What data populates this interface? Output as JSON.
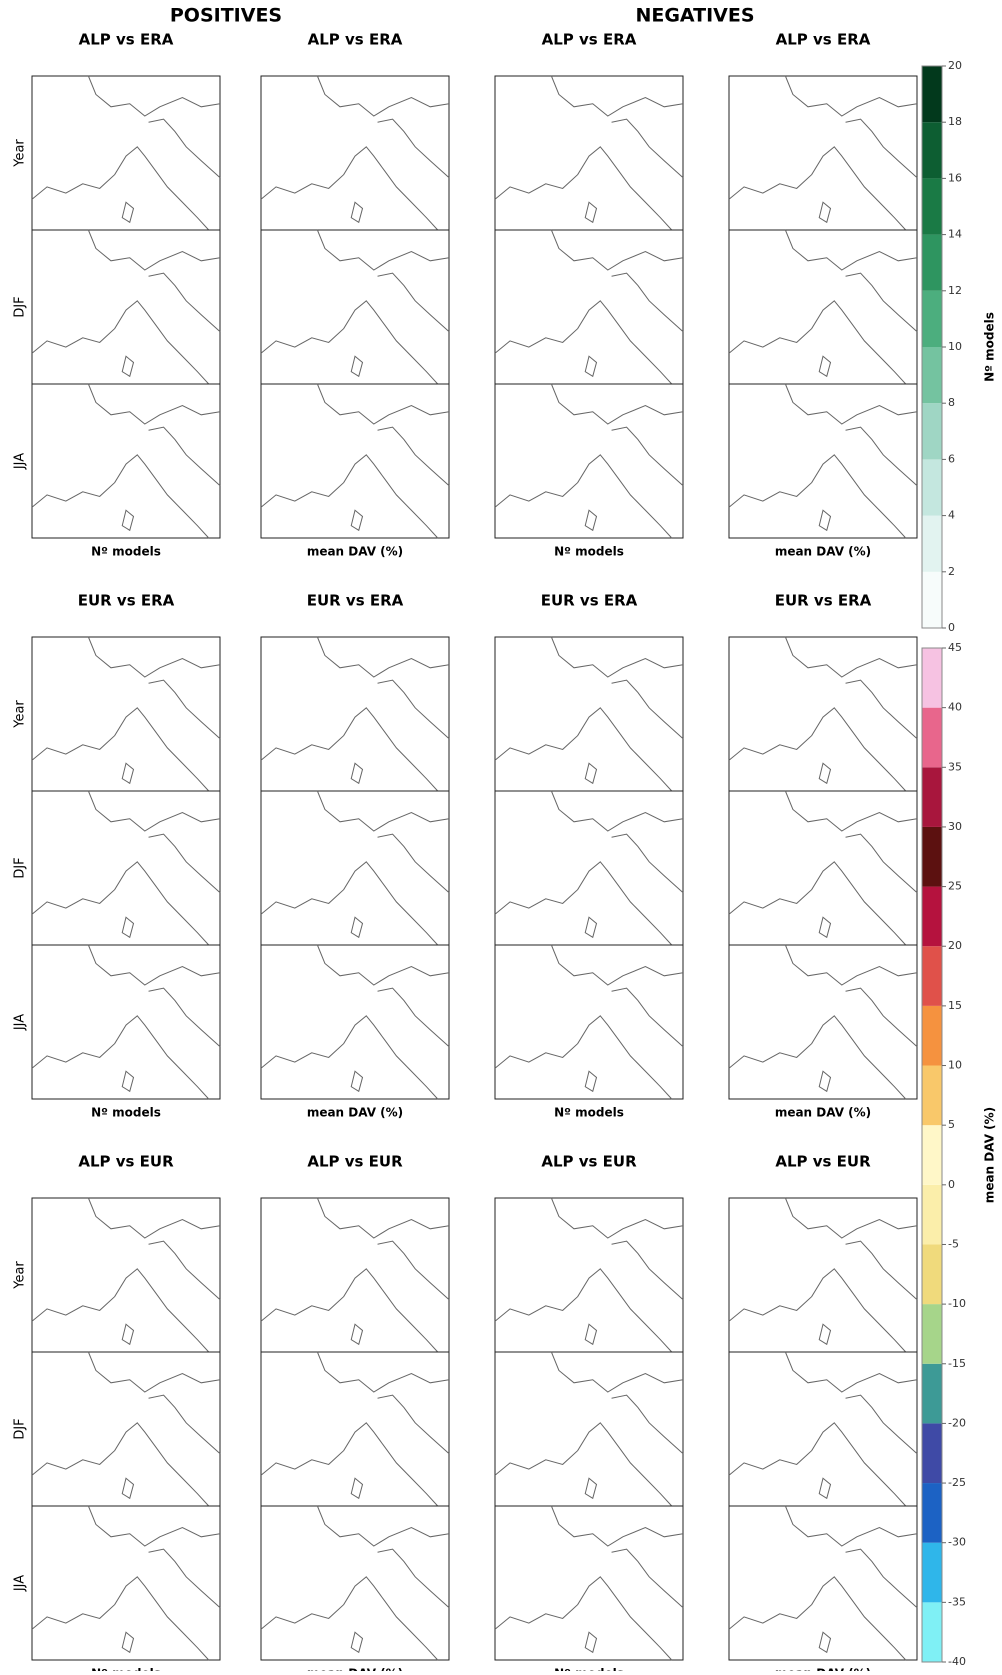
{
  "headers": {
    "positives": "POSITIVES",
    "negatives": "NEGATIVES"
  },
  "blocks": [
    {
      "titles": [
        "ALP vs ERA",
        "ALP vs ERA",
        "ALP vs ERA",
        "ALP vs ERA"
      ],
      "rows": [
        "Year",
        "DJF",
        "JJA"
      ],
      "footers": [
        "Nº models",
        "mean DAV (%)",
        "Nº models",
        "mean DAV (%)"
      ]
    },
    {
      "titles": [
        "EUR vs ERA",
        "EUR vs ERA",
        "EUR vs ERA",
        "EUR vs ERA"
      ],
      "rows": [
        "Year",
        "DJF",
        "JJA"
      ],
      "footers": [
        "Nº models",
        "mean DAV (%)",
        "Nº models",
        "mean DAV (%)"
      ]
    },
    {
      "titles": [
        "ALP vs EUR",
        "ALP vs EUR",
        "ALP vs EUR",
        "ALP vs EUR"
      ],
      "rows": [
        "Year",
        "DJF",
        "JJA"
      ],
      "footers": [
        "Nº models",
        "mean DAV (%)",
        "Nº models",
        "mean DAV (%)"
      ]
    }
  ],
  "colorbars": [
    {
      "label": "Nº models",
      "ticks": [
        0,
        2,
        4,
        6,
        8,
        10,
        12,
        14,
        16,
        18,
        20
      ],
      "colors": [
        "#f7fcfb",
        "#e2f3f0",
        "#c4e7df",
        "#9fd6c4",
        "#74c3a0",
        "#4cae7e",
        "#2e9560",
        "#1a7a45",
        "#0d5e32",
        "#02391c"
      ]
    },
    {
      "label": "mean DAV (%)",
      "ticks": [
        -40,
        -35,
        -30,
        -25,
        -20,
        -15,
        -10,
        -5,
        0,
        5,
        10,
        15,
        20,
        25,
        30,
        35,
        40,
        45
      ],
      "colors": [
        "#7ff0f5",
        "#2fb6ea",
        "#1c62c4",
        "#3f4aa6",
        "#3d9a96",
        "#a6d58a",
        "#f0da7c",
        "#fbeeaa",
        "#fff7c8",
        "#f9c86a",
        "#f5923f",
        "#e0514a",
        "#b5123e",
        "#5c1110",
        "#a8163d",
        "#e8668c",
        "#f6c2e2"
      ]
    }
  ]
}
